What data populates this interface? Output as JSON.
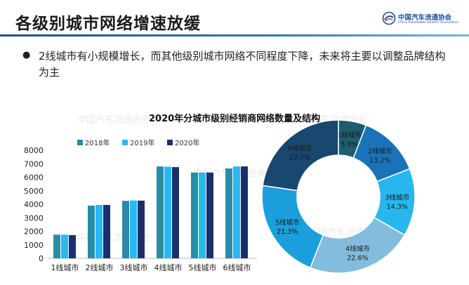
{
  "header": {
    "title": "各级别城市网络增速放缓",
    "logo_name": "中国汽车流通协会",
    "logo_english": "China Automobile Dealers Association"
  },
  "bullet": {
    "text": "2线城市有小规模增长，而其他级别城市网络不同程度下降，未来将主要以调整品牌结构为主"
  },
  "watermark": "中国汽车流通协会",
  "chart_title": "2020年分城市级别经销商网络数量及结构",
  "colors": {
    "series_2018": "#2a8ba5",
    "series_2019": "#29b9ee",
    "series_2020": "#1a2f6e",
    "donut": [
      "#1c5e6e",
      "#1a73b9",
      "#27b7ec",
      "#83bcdc",
      "#1b9fdc",
      "#184770"
    ]
  },
  "chart_data": [
    {
      "type": "bar",
      "categories": [
        "1线城市",
        "2线城市",
        "3线城市",
        "4线城市",
        "5线城市",
        "6线城市"
      ],
      "series": [
        {
          "name": "2018年",
          "values": [
            1750,
            3900,
            4250,
            6800,
            6350,
            6650
          ]
        },
        {
          "name": "2019年",
          "values": [
            1750,
            3950,
            4280,
            6780,
            6350,
            6800
          ]
        },
        {
          "name": "2020年",
          "values": [
            1720,
            3950,
            4270,
            6750,
            6350,
            6800
          ]
        }
      ],
      "ylim": [
        0,
        8000
      ],
      "yticks": [
        0,
        1000,
        2000,
        3000,
        4000,
        5000,
        6000,
        7000,
        8000
      ],
      "legend": "top",
      "grid": false
    },
    {
      "type": "pie",
      "style": "donut",
      "title": "2020年分城市级别经销商网络数量及结构",
      "labels": [
        "1线城市",
        "2线城市",
        "3线城市",
        "4线城市",
        "5线城市",
        "6线城市"
      ],
      "values": [
        5.9,
        13.2,
        14.3,
        22.6,
        21.3,
        22.7
      ],
      "value_labels": [
        "5.9%",
        "13.2%",
        "14.3%",
        "22.6%",
        "21.3%",
        "22.7%"
      ]
    }
  ]
}
